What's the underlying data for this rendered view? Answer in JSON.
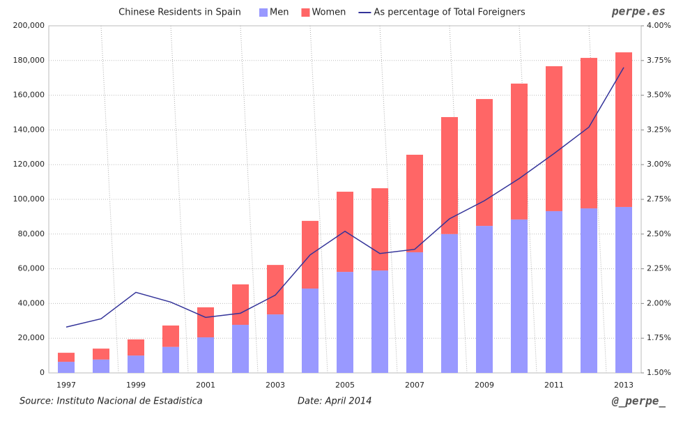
{
  "chart_data": {
    "type": "bar",
    "stacked": true,
    "title": "Chinese Residents in Spain",
    "brand": "perpe.es",
    "source": "Source: Instituto Nacional de Estadistica",
    "date": "Date: April 2014",
    "handle": "@_perpe_",
    "categories": [
      "1997",
      null,
      "1999",
      null,
      "2001",
      null,
      "2003",
      null,
      "2005",
      null,
      "2007",
      null,
      "2009",
      null,
      "2011",
      null,
      "2013"
    ],
    "series": [
      {
        "name": "Men",
        "color": "#9999ff",
        "type": "bar",
        "values": [
          6400,
          7700,
          10000,
          15000,
          20500,
          27700,
          33700,
          48600,
          58200,
          59000,
          69500,
          80000,
          84700,
          88400,
          93200,
          94800,
          95600
        ]
      },
      {
        "name": "Women",
        "color": "#ff6666",
        "type": "bar",
        "values": [
          5200,
          6300,
          9300,
          12300,
          17300,
          23300,
          28500,
          39000,
          46200,
          47400,
          56200,
          67400,
          73100,
          78300,
          83500,
          86700,
          89100
        ]
      },
      {
        "name": "As percentage of Total Foreigners",
        "color": "#333399",
        "type": "line",
        "axis": "y2",
        "values": [
          1.83,
          1.89,
          2.08,
          2.01,
          1.9,
          1.93,
          2.06,
          2.35,
          2.52,
          2.36,
          2.39,
          2.61,
          2.74,
          2.9,
          3.08,
          3.27,
          3.7
        ]
      }
    ],
    "ylim": [
      0,
      200000
    ],
    "yticks": [
      0,
      {
        "value": 20000,
        "label": "20,000"
      },
      {
        "value": 40000,
        "label": "40,000"
      },
      {
        "value": 60000,
        "label": "60,000"
      },
      {
        "value": 80000,
        "label": "80,000"
      },
      {
        "value": 100000,
        "label": "100,000"
      },
      {
        "value": 120000,
        "label": "120,000"
      },
      {
        "value": 140000,
        "label": "140,000"
      },
      {
        "value": 160000,
        "label": "160,000"
      },
      {
        "value": 180000,
        "label": "180,000"
      },
      {
        "value": 200000,
        "label": "200,000"
      }
    ],
    "y2lim": [
      1.5,
      4.0
    ],
    "y2ticks": [
      {
        "value": 1.5,
        "label": "1.50%"
      },
      {
        "value": 1.75,
        "label": "1.75%"
      },
      {
        "value": 2.0,
        "label": "2.00%"
      },
      {
        "value": 2.25,
        "label": "2.25%"
      },
      {
        "value": 2.5,
        "label": "2.50%"
      },
      {
        "value": 2.75,
        "label": "2.75%"
      },
      {
        "value": 3.0,
        "label": "3.00%"
      },
      {
        "value": 3.25,
        "label": "3.25%"
      },
      {
        "value": 3.5,
        "label": "3.50%"
      },
      {
        "value": 3.75,
        "label": "3.75%"
      },
      {
        "value": 4.0,
        "label": "4.00%"
      }
    ],
    "grid": true
  }
}
